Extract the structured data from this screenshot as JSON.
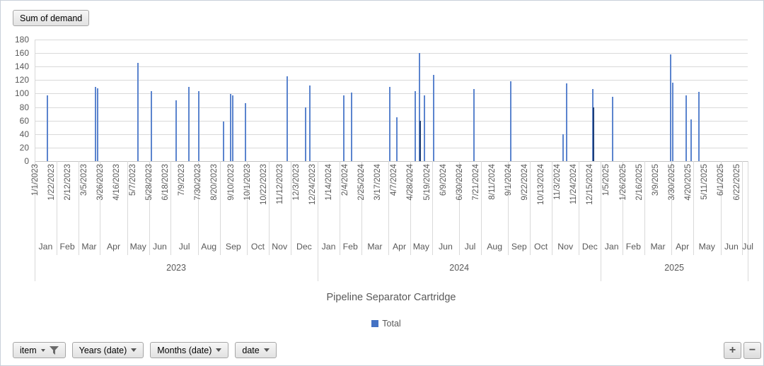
{
  "value_button": {
    "label": "Sum of demand"
  },
  "palette": {
    "bar": "#5b84ce",
    "bar_dark": "#1f3f77",
    "legend_swatch": "#4472c4",
    "gridline": "#d9d9d9",
    "axis_text": "#595959"
  },
  "chart_data": {
    "type": "bar",
    "title": "Pipeline Separator Cartridge",
    "ylim": [
      0,
      180
    ],
    "ytick_step": 20,
    "grid": true,
    "legend_position": "bottom",
    "x_start": "2023-01-01",
    "x_end": "2025-07-06",
    "x_tick_interval_days": 21,
    "x_tick_labels": [
      "1/1/2023",
      "1/22/2023",
      "2/12/2023",
      "3/5/2023",
      "3/26/2023",
      "4/16/2023",
      "5/7/2023",
      "5/28/2023",
      "6/18/2023",
      "7/9/2023",
      "7/30/2023",
      "8/20/2023",
      "9/10/2023",
      "10/1/2023",
      "10/22/2023",
      "11/12/2023",
      "12/3/2023",
      "12/24/2023",
      "1/14/2024",
      "2/4/2024",
      "2/25/2024",
      "3/17/2024",
      "4/7/2024",
      "4/28/2024",
      "5/19/2024",
      "6/9/2024",
      "6/30/2024",
      "7/21/2024",
      "8/11/2024",
      "9/1/2024",
      "9/22/2024",
      "10/13/2024",
      "11/3/2024",
      "11/24/2024",
      "12/15/2024",
      "1/5/2025",
      "1/26/2025",
      "2/16/2025",
      "3/9/2025",
      "3/30/2025",
      "4/20/2025",
      "5/11/2025",
      "6/1/2025",
      "6/22/2025"
    ],
    "years": [
      {
        "label": "2023",
        "months": [
          "Jan",
          "Feb",
          "Mar",
          "Apr",
          "May",
          "Jun",
          "Jul",
          "Aug",
          "Sep",
          "Oct",
          "Nov",
          "Dec"
        ]
      },
      {
        "label": "2024",
        "months": [
          "Jan",
          "Feb",
          "Mar",
          "Apr",
          "May",
          "Jun",
          "Jul",
          "Aug",
          "Sep",
          "Oct",
          "Nov",
          "Dec"
        ]
      },
      {
        "label": "2025",
        "months": [
          "Jan",
          "Feb",
          "Mar",
          "Apr",
          "May",
          "Jun",
          "Jul"
        ]
      }
    ],
    "series": [
      {
        "name": "Total",
        "color": "#4472c4",
        "points": [
          {
            "date": "2023-01-17",
            "value": 97
          },
          {
            "date": "2023-03-20",
            "value": 110
          },
          {
            "date": "2023-03-23",
            "value": 108
          },
          {
            "date": "2023-05-14",
            "value": 145
          },
          {
            "date": "2023-05-31",
            "value": 104
          },
          {
            "date": "2023-07-02",
            "value": 90
          },
          {
            "date": "2023-07-18",
            "value": 110
          },
          {
            "date": "2023-07-31",
            "value": 104
          },
          {
            "date": "2023-09-01",
            "value": 59
          },
          {
            "date": "2023-09-10",
            "value": 99
          },
          {
            "date": "2023-09-13",
            "value": 97
          },
          {
            "date": "2023-09-29",
            "value": 86
          },
          {
            "date": "2023-11-22",
            "value": 126
          },
          {
            "date": "2023-12-15",
            "value": 80
          },
          {
            "date": "2023-12-21",
            "value": 112
          },
          {
            "date": "2024-02-03",
            "value": 97
          },
          {
            "date": "2024-02-13",
            "value": 101
          },
          {
            "date": "2024-04-02",
            "value": 110
          },
          {
            "date": "2024-04-11",
            "value": 65
          },
          {
            "date": "2024-05-04",
            "value": 104
          },
          {
            "date": "2024-05-10",
            "value": 160
          },
          {
            "date": "2024-05-11",
            "value": 60,
            "dark": true
          },
          {
            "date": "2024-05-16",
            "value": 97
          },
          {
            "date": "2024-05-28",
            "value": 128
          },
          {
            "date": "2024-07-19",
            "value": 107
          },
          {
            "date": "2024-09-04",
            "value": 118
          },
          {
            "date": "2024-11-11",
            "value": 40
          },
          {
            "date": "2024-11-15",
            "value": 115
          },
          {
            "date": "2024-12-19",
            "value": 107
          },
          {
            "date": "2024-12-20",
            "value": 80,
            "dark": true
          },
          {
            "date": "2025-01-13",
            "value": 95
          },
          {
            "date": "2025-03-29",
            "value": 158
          },
          {
            "date": "2025-04-01",
            "value": 116
          },
          {
            "date": "2025-04-18",
            "value": 97
          },
          {
            "date": "2025-04-24",
            "value": 62
          },
          {
            "date": "2025-05-04",
            "value": 103
          }
        ]
      }
    ]
  },
  "field_buttons": [
    {
      "label": "item",
      "icon": "filter"
    },
    {
      "label": "Years (date)",
      "icon": "dropdown"
    },
    {
      "label": "Months (date)",
      "icon": "dropdown"
    },
    {
      "label": "date",
      "icon": "dropdown"
    }
  ],
  "zoom_buttons": {
    "plus": "+",
    "minus": "−"
  }
}
